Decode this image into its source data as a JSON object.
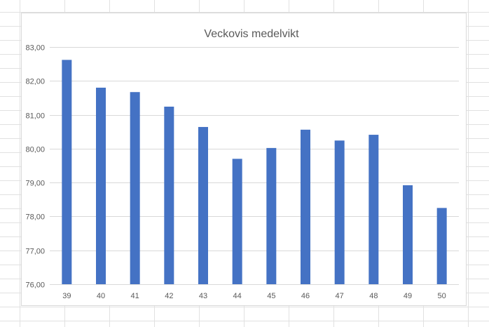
{
  "chart_data": {
    "type": "bar",
    "title": "Veckovis medelvikt",
    "xlabel": "",
    "ylabel": "",
    "categories": [
      "39",
      "40",
      "41",
      "42",
      "43",
      "44",
      "45",
      "46",
      "47",
      "48",
      "49",
      "50"
    ],
    "values": [
      82.62,
      81.8,
      81.67,
      81.24,
      80.64,
      79.7,
      80.02,
      80.56,
      80.24,
      80.41,
      78.92,
      78.25
    ],
    "ylim": [
      76,
      83
    ],
    "yticks": [
      "76,00",
      "77,00",
      "78,00",
      "79,00",
      "80,00",
      "81,00",
      "82,00",
      "83,00"
    ],
    "grid": true,
    "legend": "none",
    "bar_color": "#4472c4",
    "gridline_color": "#d9d9d9"
  }
}
